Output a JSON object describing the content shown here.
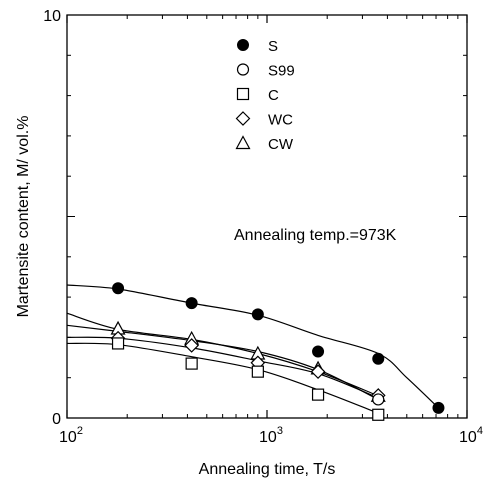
{
  "chart_data": {
    "type": "scatter",
    "xlabel": "Annealing time, T/s",
    "ylabel": "Martensite content, M/ vol.%",
    "xscale": "log",
    "xlim": [
      100,
      10000
    ],
    "ylim": [
      0,
      10
    ],
    "y_ticks": [
      "0",
      "10"
    ],
    "x_ticks": [
      {
        "base": "10",
        "exp": "2"
      },
      {
        "base": "10",
        "exp": "3"
      },
      {
        "base": "10",
        "exp": "4"
      }
    ],
    "annotation": "Annealing temp.=973K",
    "legend_position": "top-center",
    "series": [
      {
        "name": "S",
        "marker": "filled-circle",
        "x": [
          180,
          420,
          900,
          1800,
          3600,
          7200
        ],
        "y": [
          3.22,
          2.85,
          2.57,
          1.65,
          1.47,
          0.25
        ],
        "curve_x": [
          100,
          180,
          420,
          900,
          1800,
          3600,
          5000,
          7200
        ],
        "curve_y": [
          3.3,
          3.2,
          2.85,
          2.55,
          2.05,
          1.6,
          1.0,
          0.25
        ]
      },
      {
        "name": "S99",
        "marker": "open-circle",
        "x": [
          3600
        ],
        "y": [
          0.46
        ],
        "curve_x": [
          100,
          180,
          420,
          900,
          1800,
          3600
        ],
        "curve_y": [
          2.3,
          2.15,
          1.92,
          1.65,
          1.2,
          0.46
        ]
      },
      {
        "name": "C",
        "marker": "open-square",
        "x": [
          180,
          420,
          900,
          1800,
          3600
        ],
        "y": [
          1.85,
          1.35,
          1.15,
          0.58,
          0.08
        ],
        "curve_x": [
          100,
          180,
          420,
          900,
          1800,
          3600
        ],
        "curve_y": [
          1.85,
          1.82,
          1.52,
          1.2,
          0.7,
          0.12
        ]
      },
      {
        "name": "WC",
        "marker": "open-diamond",
        "x": [
          180,
          420,
          900,
          1800,
          3600
        ],
        "y": [
          1.98,
          1.8,
          1.37,
          1.15,
          0.56
        ],
        "curve_x": [
          100,
          180,
          420,
          900,
          1800,
          3600
        ],
        "curve_y": [
          2.0,
          1.98,
          1.74,
          1.42,
          1.1,
          0.5
        ]
      },
      {
        "name": "CW",
        "marker": "open-triangle",
        "x": [
          180,
          420,
          900,
          1800,
          3600
        ],
        "y": [
          2.22,
          1.97,
          1.6,
          1.23,
          0.55
        ],
        "curve_x": [
          100,
          180,
          420,
          900,
          1800,
          3600
        ],
        "curve_y": [
          2.6,
          2.2,
          1.95,
          1.6,
          1.15,
          0.55
        ]
      }
    ]
  }
}
